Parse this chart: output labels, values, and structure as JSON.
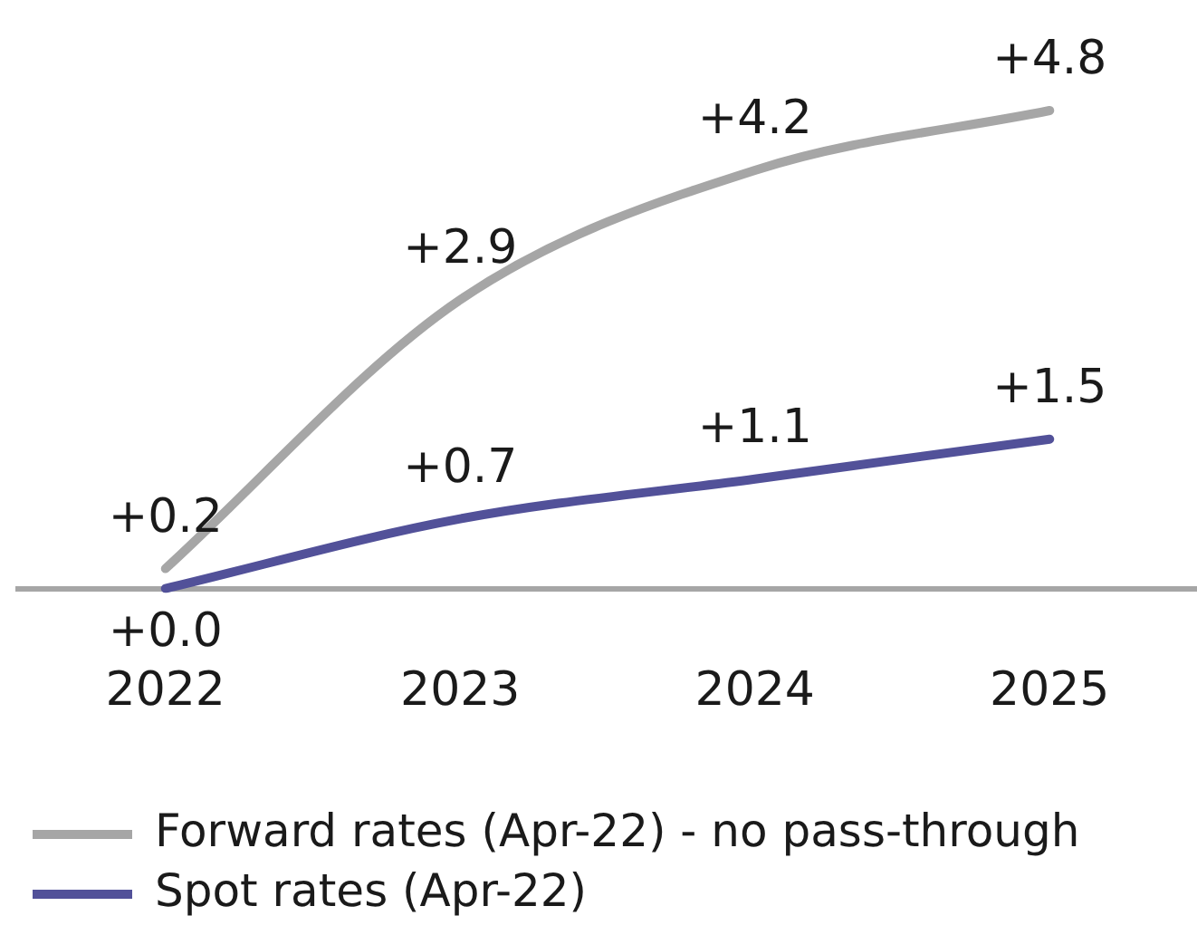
{
  "chart_data": {
    "type": "line",
    "categories": [
      "2022",
      "2023",
      "2024",
      "2025"
    ],
    "series": [
      {
        "name": "Forward rates (Apr-22) - no pass-through",
        "color": "#a6a6a6",
        "values": [
          0.2,
          2.9,
          4.2,
          4.8
        ],
        "value_labels": [
          "+0.2",
          "+2.9",
          "+4.2",
          "+4.8"
        ]
      },
      {
        "name": "Spot rates (Apr-22)",
        "color": "#525199",
        "values": [
          0.0,
          0.7,
          1.1,
          1.5
        ],
        "value_labels": [
          "+0.0",
          "+0.7",
          "+1.1",
          "+1.5"
        ]
      }
    ],
    "legend": "bottom",
    "grid": false,
    "marker": "none",
    "line_style": "solid",
    "tick_labels": "x"
  }
}
